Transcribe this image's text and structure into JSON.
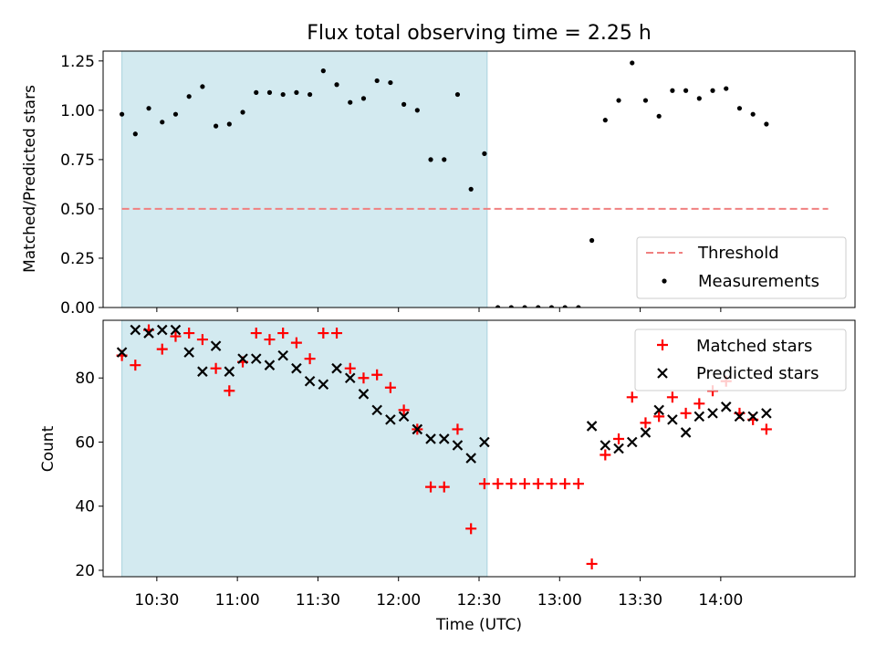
{
  "chart_data": {
    "title": "Flux total observing time = 2.25 h",
    "xlabel": "Time (UTC)",
    "xticks": [
      {
        "t": "10:30",
        "label": "10:30"
      },
      {
        "t": "11:00",
        "label": "11:00"
      },
      {
        "t": "11:30",
        "label": "11:30"
      },
      {
        "t": "12:00",
        "label": "12:00"
      },
      {
        "t": "12:30",
        "label": "12:30"
      },
      {
        "t": "13:00",
        "label": "13:00"
      },
      {
        "t": "13:30",
        "label": "13:30"
      },
      {
        "t": "14:00",
        "label": "14:00"
      }
    ],
    "xlim": [
      "10:10",
      "14:50"
    ],
    "shaded_span": [
      "10:17",
      "12:33"
    ],
    "shade_color": "#d3eaf0",
    "panels": [
      {
        "type": "scatter",
        "ylabel": "Matched/Predicted stars",
        "ylim": [
          0,
          1.3
        ],
        "yticks": [
          "0.00",
          "0.25",
          "0.50",
          "0.75",
          "1.00",
          "1.25"
        ],
        "legend_position": "lower right",
        "threshold": {
          "name": "Threshold",
          "value": 0.5,
          "x_range": [
            "10:17",
            "14:40"
          ],
          "color": "#f08080"
        },
        "series": [
          {
            "name": "Measurements",
            "color": "#000000",
            "points": [
              [
                "10:17",
                0.98
              ],
              [
                "10:22",
                0.88
              ],
              [
                "10:27",
                1.01
              ],
              [
                "10:32",
                0.94
              ],
              [
                "10:37",
                0.98
              ],
              [
                "10:42",
                1.07
              ],
              [
                "10:47",
                1.12
              ],
              [
                "10:52",
                0.92
              ],
              [
                "10:57",
                0.93
              ],
              [
                "11:02",
                0.99
              ],
              [
                "11:07",
                1.09
              ],
              [
                "11:12",
                1.09
              ],
              [
                "11:17",
                1.08
              ],
              [
                "11:22",
                1.09
              ],
              [
                "11:27",
                1.08
              ],
              [
                "11:32",
                1.2
              ],
              [
                "11:37",
                1.13
              ],
              [
                "11:42",
                1.04
              ],
              [
                "11:47",
                1.06
              ],
              [
                "11:52",
                1.15
              ],
              [
                "11:57",
                1.14
              ],
              [
                "12:02",
                1.03
              ],
              [
                "12:07",
                1.0
              ],
              [
                "12:12",
                0.75
              ],
              [
                "12:17",
                0.75
              ],
              [
                "12:22",
                1.08
              ],
              [
                "12:27",
                0.6
              ],
              [
                "12:32",
                0.78
              ],
              [
                "12:37",
                0.0
              ],
              [
                "12:42",
                0.0
              ],
              [
                "12:47",
                0.0
              ],
              [
                "12:52",
                0.0
              ],
              [
                "12:57",
                0.0
              ],
              [
                "13:02",
                0.0
              ],
              [
                "13:07",
                0.0
              ],
              [
                "13:12",
                0.34
              ],
              [
                "13:17",
                0.95
              ],
              [
                "13:22",
                1.05
              ],
              [
                "13:27",
                1.24
              ],
              [
                "13:32",
                1.05
              ],
              [
                "13:37",
                0.97
              ],
              [
                "13:42",
                1.1
              ],
              [
                "13:47",
                1.1
              ],
              [
                "13:52",
                1.06
              ],
              [
                "13:57",
                1.1
              ],
              [
                "14:02",
                1.11
              ],
              [
                "14:07",
                1.01
              ],
              [
                "14:12",
                0.98
              ],
              [
                "14:17",
                0.93
              ]
            ]
          }
        ]
      },
      {
        "type": "scatter",
        "ylabel": "Count",
        "ylim": [
          18,
          98
        ],
        "yticks": [
          "20",
          "40",
          "60",
          "80"
        ],
        "legend_position": "upper right",
        "series": [
          {
            "name": "Matched stars",
            "marker": "+",
            "color": "#ff0000",
            "points": [
              [
                "10:17",
                87
              ],
              [
                "10:22",
                84
              ],
              [
                "10:27",
                95
              ],
              [
                "10:32",
                89
              ],
              [
                "10:37",
                93
              ],
              [
                "10:42",
                94
              ],
              [
                "10:47",
                92
              ],
              [
                "10:52",
                83
              ],
              [
                "10:57",
                76
              ],
              [
                "11:02",
                85
              ],
              [
                "11:07",
                94
              ],
              [
                "11:12",
                92
              ],
              [
                "11:17",
                94
              ],
              [
                "11:22",
                91
              ],
              [
                "11:27",
                86
              ],
              [
                "11:32",
                94
              ],
              [
                "11:37",
                94
              ],
              [
                "11:42",
                83
              ],
              [
                "11:47",
                80
              ],
              [
                "11:52",
                81
              ],
              [
                "11:57",
                77
              ],
              [
                "12:02",
                70
              ],
              [
                "12:07",
                64
              ],
              [
                "12:12",
                46
              ],
              [
                "12:17",
                46
              ],
              [
                "12:22",
                64
              ],
              [
                "12:27",
                33
              ],
              [
                "12:32",
                47
              ],
              [
                "12:37",
                47
              ],
              [
                "12:42",
                47
              ],
              [
                "12:47",
                47
              ],
              [
                "12:52",
                47
              ],
              [
                "12:57",
                47
              ],
              [
                "13:02",
                47
              ],
              [
                "13:07",
                47
              ],
              [
                "13:12",
                22
              ],
              [
                "13:17",
                56
              ],
              [
                "13:22",
                61
              ],
              [
                "13:27",
                74
              ],
              [
                "13:32",
                66
              ],
              [
                "13:37",
                68
              ],
              [
                "13:42",
                74
              ],
              [
                "13:47",
                69
              ],
              [
                "13:52",
                72
              ],
              [
                "13:57",
                76
              ],
              [
                "14:02",
                79
              ],
              [
                "14:07",
                69
              ],
              [
                "14:12",
                67
              ],
              [
                "14:17",
                64
              ]
            ]
          },
          {
            "name": "Predicted stars",
            "marker": "x",
            "color": "#000000",
            "points": [
              [
                "10:17",
                88
              ],
              [
                "10:22",
                95
              ],
              [
                "10:27",
                94
              ],
              [
                "10:32",
                95
              ],
              [
                "10:37",
                95
              ],
              [
                "10:42",
                88
              ],
              [
                "10:47",
                82
              ],
              [
                "10:52",
                90
              ],
              [
                "10:57",
                82
              ],
              [
                "11:02",
                86
              ],
              [
                "11:07",
                86
              ],
              [
                "11:12",
                84
              ],
              [
                "11:17",
                87
              ],
              [
                "11:22",
                83
              ],
              [
                "11:27",
                79
              ],
              [
                "11:32",
                78
              ],
              [
                "11:37",
                83
              ],
              [
                "11:42",
                80
              ],
              [
                "11:47",
                75
              ],
              [
                "11:52",
                70
              ],
              [
                "11:57",
                67
              ],
              [
                "12:02",
                68
              ],
              [
                "12:07",
                64
              ],
              [
                "12:12",
                61
              ],
              [
                "12:17",
                61
              ],
              [
                "12:22",
                59
              ],
              [
                "12:27",
                55
              ],
              [
                "12:32",
                60
              ],
              [
                "13:12",
                65
              ],
              [
                "13:17",
                59
              ],
              [
                "13:22",
                58
              ],
              [
                "13:27",
                60
              ],
              [
                "13:32",
                63
              ],
              [
                "13:37",
                70
              ],
              [
                "13:42",
                67
              ],
              [
                "13:47",
                63
              ],
              [
                "13:52",
                68
              ],
              [
                "13:57",
                69
              ],
              [
                "14:02",
                71
              ],
              [
                "14:07",
                68
              ],
              [
                "14:12",
                68
              ],
              [
                "14:17",
                69
              ]
            ]
          }
        ]
      }
    ]
  }
}
